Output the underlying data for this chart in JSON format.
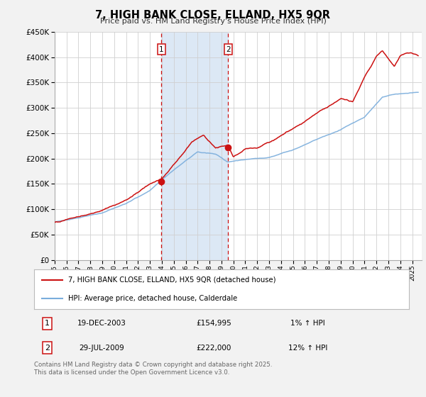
{
  "title": "7, HIGH BANK CLOSE, ELLAND, HX5 9QR",
  "subtitle": "Price paid vs. HM Land Registry's House Price Index (HPI)",
  "ylim": [
    0,
    450000
  ],
  "xlim_start": 1995.0,
  "xlim_end": 2025.8,
  "plot_bg_color": "#ffffff",
  "fig_bg_color": "#f2f2f2",
  "grid_color": "#d0d0d0",
  "hpi_line_color": "#7aaddc",
  "price_line_color": "#cc1111",
  "shade_color": "#dce8f5",
  "sale1_x": 2003.97,
  "sale1_y": 154995,
  "sale2_x": 2009.57,
  "sale2_y": 222000,
  "sale1_date": "19-DEC-2003",
  "sale1_price": "£154,995",
  "sale1_hpi": "1% ↑ HPI",
  "sale2_date": "29-JUL-2009",
  "sale2_price": "£222,000",
  "sale2_hpi": "12% ↑ HPI",
  "legend_label1": "7, HIGH BANK CLOSE, ELLAND, HX5 9QR (detached house)",
  "legend_label2": "HPI: Average price, detached house, Calderdale",
  "footer": "Contains HM Land Registry data © Crown copyright and database right 2025.\nThis data is licensed under the Open Government Licence v3.0."
}
